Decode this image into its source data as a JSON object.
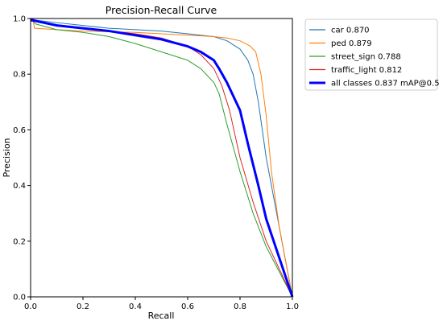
{
  "chart_data": {
    "type": "line",
    "title": "Precision-Recall Curve",
    "xlabel": "Recall",
    "ylabel": "Precision",
    "xlim": [
      0,
      1
    ],
    "ylim": [
      0,
      1
    ],
    "x_ticks": [
      "0.0",
      "0.2",
      "0.4",
      "0.6",
      "0.8",
      "1.0"
    ],
    "y_ticks": [
      "0.0",
      "0.2",
      "0.4",
      "0.6",
      "0.8",
      "1.0"
    ],
    "grid": false,
    "legend_position": "outside-top-right",
    "series": [
      {
        "name": "car 0.870",
        "color": "#1f77b4",
        "emphasis": false,
        "points": [
          [
            0,
            1.0
          ],
          [
            0.01,
            0.995
          ],
          [
            0.1,
            0.985
          ],
          [
            0.2,
            0.975
          ],
          [
            0.3,
            0.965
          ],
          [
            0.4,
            0.96
          ],
          [
            0.5,
            0.955
          ],
          [
            0.6,
            0.945
          ],
          [
            0.65,
            0.94
          ],
          [
            0.7,
            0.935
          ],
          [
            0.75,
            0.92
          ],
          [
            0.8,
            0.89
          ],
          [
            0.83,
            0.85
          ],
          [
            0.85,
            0.8
          ],
          [
            0.87,
            0.7
          ],
          [
            0.9,
            0.5
          ],
          [
            0.93,
            0.35
          ],
          [
            1.0,
            0.0
          ]
        ]
      },
      {
        "name": "ped 0.879",
        "color": "#ff7f0e",
        "emphasis": false,
        "points": [
          [
            0,
            0.99
          ],
          [
            0.01,
            0.99
          ],
          [
            0.015,
            0.965
          ],
          [
            0.1,
            0.96
          ],
          [
            0.2,
            0.955
          ],
          [
            0.4,
            0.95
          ],
          [
            0.5,
            0.945
          ],
          [
            0.6,
            0.94
          ],
          [
            0.7,
            0.935
          ],
          [
            0.75,
            0.93
          ],
          [
            0.8,
            0.92
          ],
          [
            0.84,
            0.9
          ],
          [
            0.86,
            0.88
          ],
          [
            0.88,
            0.8
          ],
          [
            0.9,
            0.65
          ],
          [
            0.92,
            0.45
          ],
          [
            0.95,
            0.25
          ],
          [
            1.0,
            0.0
          ]
        ]
      },
      {
        "name": "street_sign 0.788",
        "color": "#2ca02c",
        "emphasis": false,
        "points": [
          [
            0,
            1.0
          ],
          [
            0.02,
            0.98
          ],
          [
            0.1,
            0.96
          ],
          [
            0.2,
            0.95
          ],
          [
            0.3,
            0.935
          ],
          [
            0.4,
            0.91
          ],
          [
            0.5,
            0.88
          ],
          [
            0.6,
            0.85
          ],
          [
            0.65,
            0.82
          ],
          [
            0.7,
            0.77
          ],
          [
            0.72,
            0.73
          ],
          [
            0.75,
            0.62
          ],
          [
            0.8,
            0.45
          ],
          [
            0.85,
            0.3
          ],
          [
            0.9,
            0.18
          ],
          [
            1.0,
            0.0
          ]
        ]
      },
      {
        "name": "traffic_light 0.812",
        "color": "#d62728",
        "emphasis": false,
        "points": [
          [
            0,
            1.0
          ],
          [
            0.05,
            0.985
          ],
          [
            0.1,
            0.975
          ],
          [
            0.2,
            0.965
          ],
          [
            0.3,
            0.955
          ],
          [
            0.4,
            0.945
          ],
          [
            0.5,
            0.93
          ],
          [
            0.6,
            0.9
          ],
          [
            0.65,
            0.87
          ],
          [
            0.7,
            0.82
          ],
          [
            0.73,
            0.76
          ],
          [
            0.76,
            0.67
          ],
          [
            0.8,
            0.5
          ],
          [
            0.85,
            0.34
          ],
          [
            0.9,
            0.2
          ],
          [
            1.0,
            0.0
          ]
        ]
      },
      {
        "name": "all classes 0.837 mAP@0.5",
        "color": "#0000ff",
        "emphasis": true,
        "points": [
          [
            0,
            0.995
          ],
          [
            0.05,
            0.985
          ],
          [
            0.1,
            0.975
          ],
          [
            0.2,
            0.965
          ],
          [
            0.3,
            0.955
          ],
          [
            0.4,
            0.94
          ],
          [
            0.5,
            0.925
          ],
          [
            0.6,
            0.9
          ],
          [
            0.65,
            0.88
          ],
          [
            0.7,
            0.85
          ],
          [
            0.72,
            0.82
          ],
          [
            0.75,
            0.77
          ],
          [
            0.8,
            0.67
          ],
          [
            0.83,
            0.55
          ],
          [
            0.87,
            0.4
          ],
          [
            0.9,
            0.28
          ],
          [
            0.95,
            0.14
          ],
          [
            1.0,
            0.0
          ]
        ]
      }
    ]
  }
}
